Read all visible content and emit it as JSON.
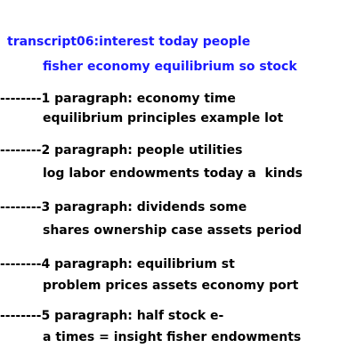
{
  "title": {
    "line1": "transcript06:interest today people",
    "line2": "fisher economy equilibrium so stock"
  },
  "paragraphs": [
    {
      "line1": "--------1 paragraph: economy time",
      "line2": "equilibrium principles example lot"
    },
    {
      "line1": "--------2 paragraph: people utilities",
      "line2": "log labor endowments today a  kinds"
    },
    {
      "line1": "--------3 paragraph: dividends some",
      "line2": "shares ownership case assets period"
    },
    {
      "line1": "--------4 paragraph: equilibrium st",
      "line2": "problem prices assets economy port"
    },
    {
      "line1": "--------5 paragraph: half stock e-",
      "line2": "a times = insight fisher endowments"
    }
  ],
  "colors": {
    "title": "#1a1aff",
    "text": "#000000",
    "background": "#ffffff"
  }
}
